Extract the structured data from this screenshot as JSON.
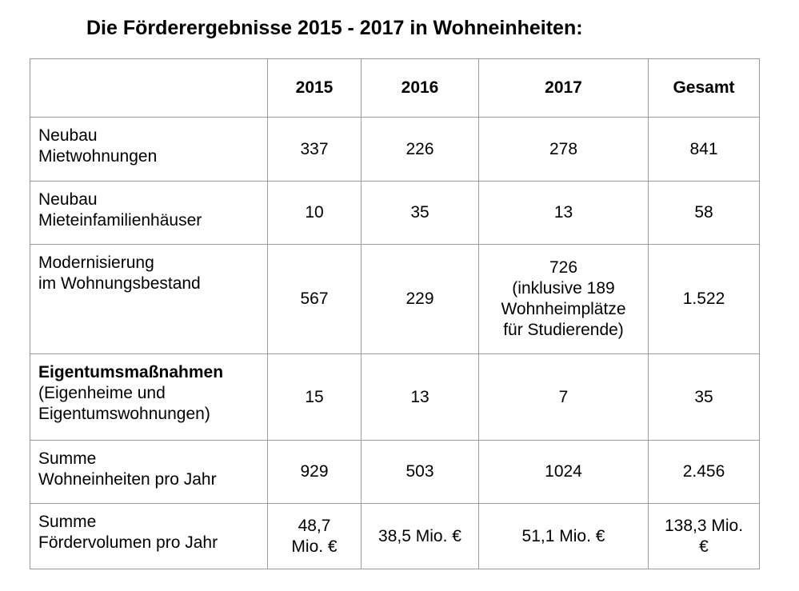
{
  "title": "Die Förderergebnisse 2015 - 2017 in Wohneinheiten:",
  "columns": [
    "",
    "2015",
    "2016",
    "2017",
    "Gesamt"
  ],
  "rows": [
    {
      "label_lines": [
        "Neubau",
        "Mietwohnungen"
      ],
      "values": [
        "337",
        "226",
        "278"
      ],
      "total": "841"
    },
    {
      "label_lines": [
        "Neubau",
        "Mieteinfamilienhäuser"
      ],
      "values": [
        "10",
        "35",
        "13"
      ],
      "total": "58"
    },
    {
      "label_lines": [
        "Modernisierung",
        "im Wohnungsbestand"
      ],
      "values": [
        "567",
        "229",
        "726"
      ],
      "value_2017_note_lines": [
        "(inklusive 189",
        "Wohnheimplätze",
        "für Studierende)"
      ],
      "total": "1.522"
    },
    {
      "label_lines": [
        "Eigentumsmaßnahmen"
      ],
      "label_detail_lines": [
        "(Eigenheime und",
        "Eigentumswohnungen)"
      ],
      "values": [
        "15",
        "13",
        "7"
      ],
      "total": "35"
    },
    {
      "label_lines": [
        "Summe",
        "Wohneinheiten pro Jahr"
      ],
      "values": [
        "929",
        "503",
        "1024"
      ],
      "total": "2.456"
    },
    {
      "label_lines": [
        "Summe",
        "Fördervolumen pro Jahr"
      ],
      "value_2015_lines": [
        "48,7",
        "Mio. €"
      ],
      "values": [
        "48,7 Mio. €",
        "38,5 Mio. €",
        "51,1 Mio. €"
      ],
      "total_lines": [
        "138,3 Mio.",
        "€"
      ],
      "total": "138,3 Mio. €"
    }
  ]
}
